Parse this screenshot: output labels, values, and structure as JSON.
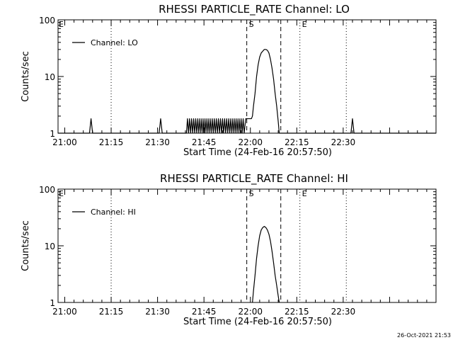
{
  "footer": {
    "timestamp": "26-Oct-2021 21:53"
  },
  "chart_data": [
    {
      "type": "line",
      "title": "RHESSI PARTICLE_RATE Channel: LO",
      "xlabel": "Start Time (24-Feb-16 20:57:50)",
      "ylabel": "Counts/sec",
      "yscale": "log",
      "xlim": [
        "20:57:50",
        "23:00:00"
      ],
      "ylim": [
        1,
        100
      ],
      "x_ticks": [
        "21:00",
        "21:15",
        "21:30",
        "21:45",
        "22:00",
        "22:15",
        "22:30"
      ],
      "y_ticks": [
        "1",
        "10",
        "100"
      ],
      "legend": {
        "position": "top-left",
        "entries": [
          "Channel: LO"
        ]
      },
      "grid": false,
      "vlines": [
        {
          "x": "21:15:00",
          "style": "dotted",
          "label": ""
        },
        {
          "x": "22:16:00",
          "style": "dotted",
          "label": "E"
        },
        {
          "x": "22:31:00",
          "style": "dotted",
          "label": ""
        },
        {
          "x": "21:58:50",
          "style": "dashed",
          "label": "S"
        },
        {
          "x": "22:09:50",
          "style": "dashed",
          "label": ""
        }
      ],
      "corner_labels": [
        "E"
      ],
      "series": [
        {
          "name": "Channel: LO",
          "points": [
            [
              "20:57:50",
              1
            ],
            [
              "21:08:00",
              1
            ],
            [
              "21:08:30",
              1.8
            ],
            [
              "21:09:00",
              1
            ],
            [
              "21:30:30",
              1
            ],
            [
              "21:31:00",
              1.8
            ],
            [
              "21:31:30",
              1
            ],
            [
              "21:39:20",
              1
            ],
            [
              "21:39:40",
              1.8
            ],
            [
              "21:40:00",
              1
            ],
            [
              "21:40:20",
              1.8
            ],
            [
              "21:40:40",
              1
            ],
            [
              "21:41:00",
              1.8
            ],
            [
              "21:41:20",
              1
            ],
            [
              "21:41:40",
              1.8
            ],
            [
              "21:42:00",
              1
            ],
            [
              "21:42:20",
              1.8
            ],
            [
              "21:42:40",
              1
            ],
            [
              "21:43:00",
              1.8
            ],
            [
              "21:43:20",
              1
            ],
            [
              "21:43:40",
              1.8
            ],
            [
              "21:44:00",
              1
            ],
            [
              "21:44:20",
              1.8
            ],
            [
              "21:44:40",
              1
            ],
            [
              "21:45:00",
              1.8
            ],
            [
              "21:45:20",
              1
            ],
            [
              "21:45:40",
              1.8
            ],
            [
              "21:46:00",
              1
            ],
            [
              "21:46:20",
              1.8
            ],
            [
              "21:46:40",
              1
            ],
            [
              "21:47:00",
              1.8
            ],
            [
              "21:47:20",
              1
            ],
            [
              "21:47:40",
              1.8
            ],
            [
              "21:48:00",
              1
            ],
            [
              "21:48:20",
              1.8
            ],
            [
              "21:48:40",
              1
            ],
            [
              "21:49:00",
              1.8
            ],
            [
              "21:49:20",
              1
            ],
            [
              "21:49:40",
              1.8
            ],
            [
              "21:50:00",
              1
            ],
            [
              "21:50:20",
              1.8
            ],
            [
              "21:50:40",
              1
            ],
            [
              "21:51:00",
              1.8
            ],
            [
              "21:51:20",
              1
            ],
            [
              "21:51:40",
              1.8
            ],
            [
              "21:52:00",
              1
            ],
            [
              "21:52:20",
              1.8
            ],
            [
              "21:52:40",
              1
            ],
            [
              "21:53:00",
              1.8
            ],
            [
              "21:53:20",
              1
            ],
            [
              "21:53:40",
              1.8
            ],
            [
              "21:54:00",
              1
            ],
            [
              "21:54:20",
              1.8
            ],
            [
              "21:54:40",
              1
            ],
            [
              "21:55:00",
              1.8
            ],
            [
              "21:55:20",
              1
            ],
            [
              "21:55:40",
              1.8
            ],
            [
              "21:56:00",
              1
            ],
            [
              "21:56:20",
              1.8
            ],
            [
              "21:56:40",
              1
            ],
            [
              "21:57:00",
              1.8
            ],
            [
              "21:57:20",
              1
            ],
            [
              "21:57:40",
              1.8
            ],
            [
              "21:58:00",
              1
            ],
            [
              "21:58:30",
              1.8
            ],
            [
              "21:59:10",
              1.8
            ],
            [
              "21:59:50",
              1.8
            ],
            [
              "22:00:20",
              1.8
            ],
            [
              "22:00:40",
              2
            ],
            [
              "22:01:00",
              3
            ],
            [
              "22:01:30",
              5
            ],
            [
              "22:02:00",
              10
            ],
            [
              "22:02:30",
              16
            ],
            [
              "22:03:00",
              22
            ],
            [
              "22:03:30",
              26
            ],
            [
              "22:04:00",
              28
            ],
            [
              "22:04:30",
              30
            ],
            [
              "22:05:00",
              30
            ],
            [
              "22:05:30",
              29
            ],
            [
              "22:06:00",
              26
            ],
            [
              "22:06:30",
              20
            ],
            [
              "22:07:00",
              14
            ],
            [
              "22:07:30",
              9
            ],
            [
              "22:08:00",
              5
            ],
            [
              "22:08:30",
              3
            ],
            [
              "22:09:00",
              1.6
            ],
            [
              "22:09:20",
              1
            ],
            [
              "22:32:30",
              1
            ],
            [
              "22:33:00",
              1.8
            ],
            [
              "22:33:30",
              1
            ],
            [
              "23:00:00",
              1
            ]
          ]
        }
      ]
    },
    {
      "type": "line",
      "title": "RHESSI PARTICLE_RATE Channel: HI",
      "xlabel": "Start Time (24-Feb-16 20:57:50)",
      "ylabel": "Counts/sec",
      "yscale": "log",
      "xlim": [
        "20:57:50",
        "23:00:00"
      ],
      "ylim": [
        1,
        100
      ],
      "x_ticks": [
        "21:00",
        "21:15",
        "21:30",
        "21:45",
        "22:00",
        "22:15",
        "22:30"
      ],
      "y_ticks": [
        "1",
        "10",
        "100"
      ],
      "legend": {
        "position": "top-left",
        "entries": [
          "Channel: HI"
        ]
      },
      "grid": false,
      "vlines": [
        {
          "x": "21:15:00",
          "style": "dotted",
          "label": ""
        },
        {
          "x": "22:16:00",
          "style": "dotted",
          "label": "E"
        },
        {
          "x": "22:31:00",
          "style": "dotted",
          "label": ""
        },
        {
          "x": "21:58:50",
          "style": "dashed",
          "label": "S"
        },
        {
          "x": "22:09:50",
          "style": "dashed",
          "label": ""
        }
      ],
      "corner_labels": [
        "E"
      ],
      "series": [
        {
          "name": "Channel: HI",
          "points": [
            [
              "22:00:40",
              1
            ],
            [
              "22:01:00",
              1.6
            ],
            [
              "22:01:30",
              3
            ],
            [
              "22:02:00",
              6
            ],
            [
              "22:02:30",
              10
            ],
            [
              "22:03:00",
              15
            ],
            [
              "22:03:30",
              19
            ],
            [
              "22:04:00",
              21
            ],
            [
              "22:04:30",
              22
            ],
            [
              "22:05:00",
              21
            ],
            [
              "22:05:30",
              19
            ],
            [
              "22:06:00",
              16
            ],
            [
              "22:06:30",
              12
            ],
            [
              "22:07:00",
              8
            ],
            [
              "22:07:30",
              5
            ],
            [
              "22:08:00",
              3
            ],
            [
              "22:08:30",
              2
            ],
            [
              "22:09:00",
              1.3
            ],
            [
              "22:09:20",
              1
            ]
          ]
        }
      ]
    }
  ]
}
